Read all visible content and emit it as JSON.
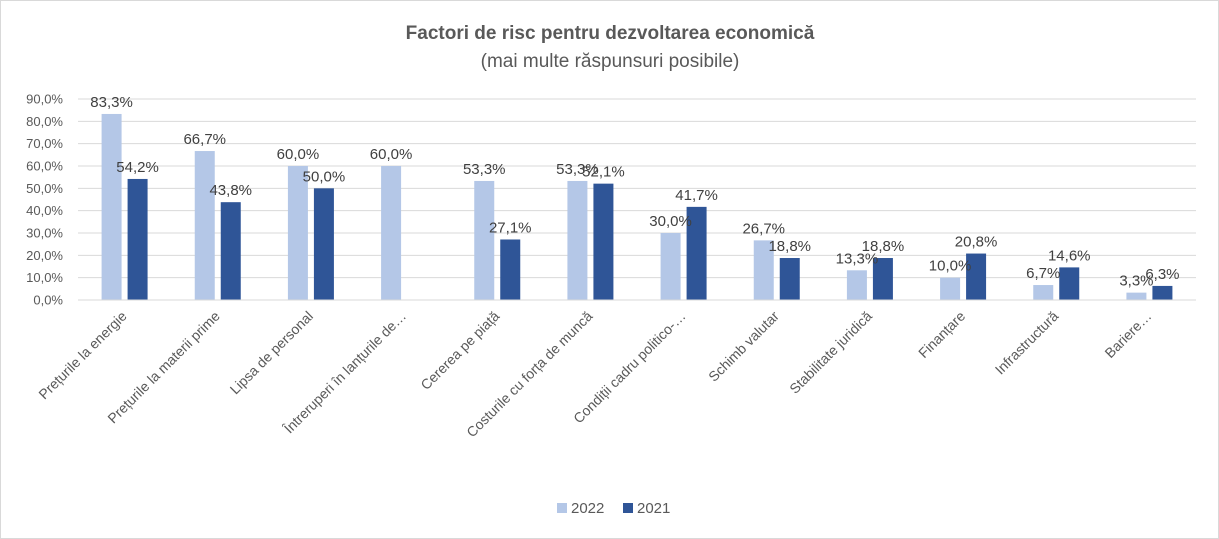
{
  "chart_data": {
    "type": "bar",
    "title": "Factori de risc pentru dezvoltarea economică",
    "subtitle": "(mai multe răspunsuri posibile)",
    "categories": [
      "Prețurile la energie",
      "Prețurile la materii prime",
      "Lipsa de personal",
      "Întreruperi în lanțurile de…",
      "Cererea pe piață",
      "Costurile cu forța de muncă",
      "Condiții cadru politico-…",
      "Schimb valutar",
      "Stabilitate juridică",
      "Finanțare",
      "Infrastructură",
      "Bariere…"
    ],
    "series": [
      {
        "name": "2022",
        "color": "#b4c7e7",
        "values": [
          83.3,
          66.7,
          60.0,
          60.0,
          53.3,
          53.3,
          30.0,
          26.7,
          13.3,
          10.0,
          6.7,
          3.3
        ],
        "labels": [
          "83,3%",
          "66,7%",
          "60,0%",
          "60,0%",
          "53,3%",
          "53,3%",
          "30,0%",
          "26,7%",
          "13,3%",
          "10,0%",
          "6,7%",
          "3,3%"
        ]
      },
      {
        "name": "2021",
        "color": "#2f5597",
        "values": [
          54.2,
          43.8,
          50.0,
          null,
          27.1,
          52.1,
          41.7,
          18.8,
          18.8,
          20.8,
          14.6,
          6.3
        ],
        "labels": [
          "54,2%",
          "43,8%",
          "50,0%",
          "",
          "27,1%",
          "52,1%",
          "41,7%",
          "18,8%",
          "18,8%",
          "20,8%",
          "14,6%",
          "6,3%"
        ]
      }
    ],
    "ylim": [
      0,
      90
    ],
    "yticks": [
      "0,0%",
      "10,0%",
      "20,0%",
      "30,0%",
      "40,0%",
      "50,0%",
      "60,0%",
      "70,0%",
      "80,0%",
      "90,0%"
    ],
    "grid": true,
    "legend_position": "bottom"
  }
}
